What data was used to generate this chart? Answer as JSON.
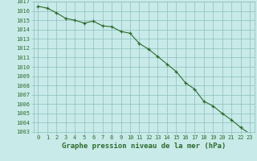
{
  "x": [
    0,
    1,
    2,
    3,
    4,
    5,
    6,
    7,
    8,
    9,
    10,
    11,
    12,
    13,
    14,
    15,
    16,
    17,
    18,
    19,
    20,
    21,
    22,
    23
  ],
  "y": [
    1016.5,
    1016.3,
    1015.8,
    1015.2,
    1015.0,
    1014.7,
    1014.9,
    1014.4,
    1014.3,
    1013.8,
    1013.6,
    1012.5,
    1011.9,
    1011.1,
    1010.3,
    1009.5,
    1008.3,
    1007.6,
    1006.3,
    1005.8,
    1005.0,
    1004.3,
    1003.5,
    1002.8
  ],
  "line_color": "#2d6b2d",
  "marker": "+",
  "bg_color": "#c8eae8",
  "grid_color": "#8bbfbd",
  "xlabel": "Graphe pression niveau de la mer (hPa)",
  "xlabel_color": "#2d6b2d",
  "tick_color": "#2d6b2d",
  "ylim_min": 1003,
  "ylim_max": 1017,
  "xlim_min": -0.5,
  "xlim_max": 23.5,
  "ytick_step": 1,
  "xtick_labels": [
    "0",
    "1",
    "2",
    "3",
    "4",
    "5",
    "6",
    "7",
    "8",
    "9",
    "10",
    "11",
    "12",
    "13",
    "14",
    "15",
    "16",
    "17",
    "18",
    "19",
    "20",
    "21",
    "22",
    "23"
  ],
  "font_size_ticks": 5.0,
  "font_size_xlabel": 6.5
}
